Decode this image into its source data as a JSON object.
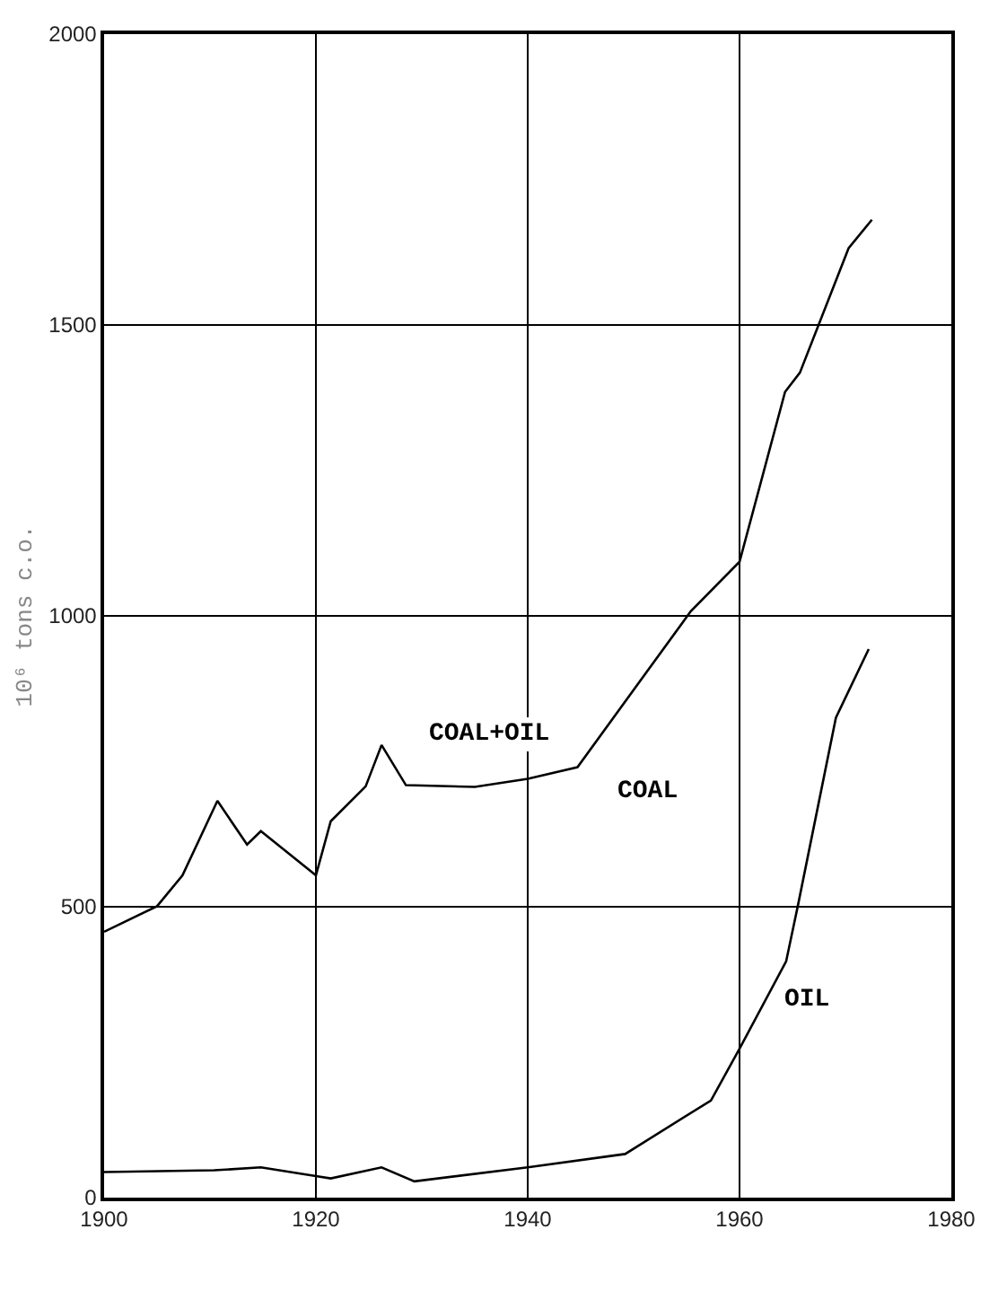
{
  "chart_data": {
    "type": "line",
    "ylabel": "10⁶ tons c.o.",
    "xlim": [
      1900,
      1980
    ],
    "xticks": [
      1900,
      1920,
      1940,
      1960,
      1980
    ],
    "ylim": [
      0,
      2000
    ],
    "yticks": [
      0,
      500,
      1000,
      1500,
      2000
    ],
    "grid": true,
    "legend": false,
    "series": [
      {
        "name": "COAL+OIL",
        "color": "#000000",
        "x": [
          1900,
          1905,
          1907.4,
          1910.7,
          1913.5,
          1914.8,
          1920,
          1921.4,
          1924.7,
          1926.2,
          1928.5,
          1935,
          1940,
          1944.7,
          1955.4,
          1960,
          1964.3,
          1965.7,
          1970.3,
          1972.5
        ],
        "values": [
          457,
          501,
          554,
          682,
          607,
          630,
          554,
          647,
          707,
          778,
          709,
          706,
          720,
          740,
          1008,
          1093,
          1385,
          1418,
          1632,
          1681
        ]
      },
      {
        "name": "OIL",
        "color": "#000000",
        "x": [
          1900,
          1910.4,
          1914.8,
          1920,
          1921.4,
          1926.2,
          1929.3,
          1940,
          1949.2,
          1957.3,
          1960,
          1964.4,
          1965.5,
          1969.1,
          1972.2
        ],
        "values": [
          44,
          47,
          52,
          37,
          33,
          52,
          28,
          52,
          75,
          167,
          256,
          406,
          501,
          825,
          943
        ]
      }
    ],
    "annotations": [
      "COAL"
    ]
  }
}
